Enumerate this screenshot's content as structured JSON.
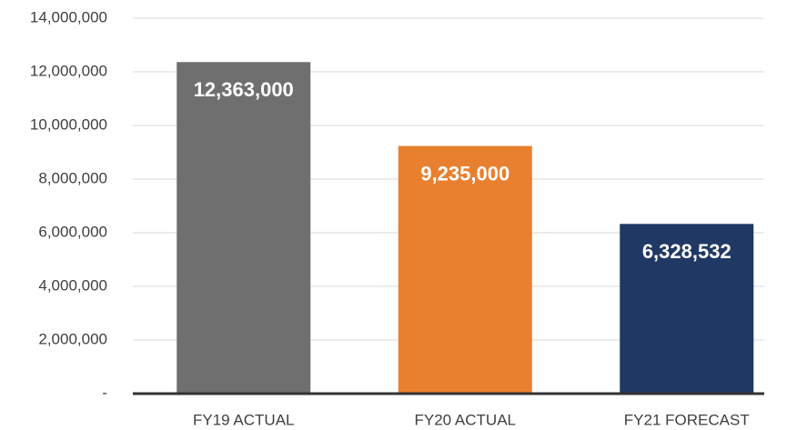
{
  "chart_data": {
    "type": "bar",
    "categories": [
      "FY19 ACTUAL",
      "FY20 ACTUAL",
      "FY21 FORECAST"
    ],
    "values": [
      12363000,
      9235000,
      6328532
    ],
    "value_labels": [
      "12,363,000",
      "9,235,000",
      "6,328,532"
    ],
    "colors": [
      "#6f6f6f",
      "#e8802f",
      "#203864"
    ],
    "ylim": [
      0,
      14000000
    ],
    "yticks": [
      {
        "value": 0,
        "label": "-"
      },
      {
        "value": 2000000,
        "label": "2,000,000"
      },
      {
        "value": 4000000,
        "label": "4,000,000"
      },
      {
        "value": 6000000,
        "label": "6,000,000"
      },
      {
        "value": 8000000,
        "label": "8,000,000"
      },
      {
        "value": 10000000,
        "label": "10,000,000"
      },
      {
        "value": 12000000,
        "label": "12,000,000"
      },
      {
        "value": 14000000,
        "label": "14,000,000"
      }
    ],
    "grid": true
  }
}
